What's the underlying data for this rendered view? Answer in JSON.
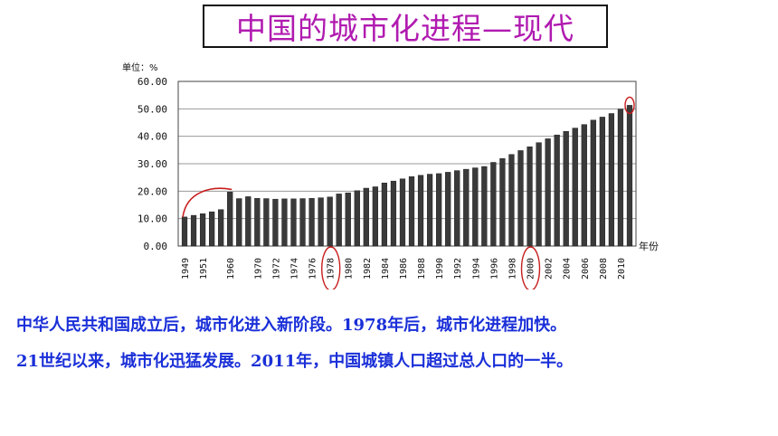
{
  "title": "中国的城市化进程—现代",
  "captions": [
    "中华人民共和国成立后，城市化进入新阶段。1978年后，城市化进程加快。",
    "21世纪以来，城市化迅猛发展。2011年，中国城镇人口超过总人口的一半。"
  ],
  "chart_data": {
    "type": "bar",
    "unit_label": "单位：%",
    "xlabel": "年份",
    "ylim": [
      0,
      60
    ],
    "yticks": [
      "0.00",
      "10.00",
      "20.00",
      "30.00",
      "40.00",
      "50.00",
      "60.00"
    ],
    "categories": [
      "1949",
      "1950",
      "1951",
      "1952",
      "1953",
      "1960",
      "1962",
      "1965",
      "1970",
      "1971",
      "1972",
      "1973",
      "1974",
      "1975",
      "1976",
      "1977",
      "1978",
      "1979",
      "1980",
      "1981",
      "1982",
      "1983",
      "1984",
      "1985",
      "1986",
      "1987",
      "1988",
      "1989",
      "1990",
      "1991",
      "1992",
      "1993",
      "1994",
      "1995",
      "1996",
      "1997",
      "1998",
      "1999",
      "2000",
      "2001",
      "2002",
      "2003",
      "2004",
      "2005",
      "2006",
      "2007",
      "2008",
      "2009",
      "2010",
      "2011"
    ],
    "xtick_labels": [
      "1949",
      "1951",
      "1960",
      "1970",
      "1972",
      "1974",
      "1976",
      "1978",
      "1980",
      "1982",
      "1984",
      "1986",
      "1988",
      "1990",
      "1992",
      "1994",
      "1996",
      "1998",
      "2000",
      "2002",
      "2004",
      "2006",
      "2008",
      "2010"
    ],
    "values": [
      10.6,
      11.2,
      11.8,
      12.5,
      13.3,
      19.7,
      17.3,
      18.0,
      17.4,
      17.3,
      17.1,
      17.2,
      17.2,
      17.3,
      17.4,
      17.6,
      17.9,
      19.0,
      19.4,
      20.2,
      21.1,
      21.6,
      23.0,
      23.7,
      24.5,
      25.3,
      25.8,
      26.2,
      26.4,
      26.9,
      27.5,
      28.0,
      28.5,
      29.0,
      30.5,
      31.9,
      33.4,
      34.8,
      36.2,
      37.7,
      39.1,
      40.5,
      41.8,
      43.0,
      44.3,
      45.9,
      47.0,
      48.3,
      49.9,
      51.3
    ],
    "bar_color": "#3a3a3a",
    "highlight_color": "#c81e1e",
    "grid": true
  }
}
